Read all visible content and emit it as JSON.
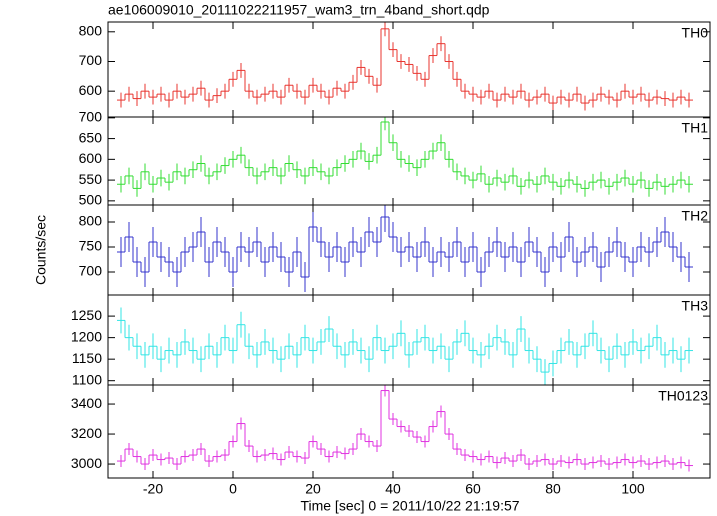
{
  "chart_data": [
    {
      "type": "line",
      "drawstyle": "steps-mid",
      "title": "ae106009010_20111022211957_wam3_trn_4band_short.qdp",
      "label": "TH0",
      "color": "#e8352f",
      "x": [
        -28,
        -26,
        -24,
        -22,
        -20,
        -18,
        -16,
        -14,
        -12,
        -10,
        -8,
        -6,
        -4,
        -2,
        0,
        2,
        4,
        6,
        8,
        10,
        12,
        14,
        16,
        18,
        20,
        22,
        24,
        26,
        28,
        30,
        32,
        34,
        36,
        38,
        40,
        42,
        44,
        46,
        48,
        50,
        52,
        54,
        56,
        58,
        60,
        62,
        64,
        66,
        68,
        70,
        72,
        74,
        76,
        78,
        80,
        82,
        84,
        86,
        88,
        90,
        92,
        94,
        96,
        98,
        100,
        102,
        104,
        106,
        108,
        110,
        112,
        114
      ],
      "values": [
        570,
        590,
        575,
        600,
        580,
        590,
        570,
        600,
        580,
        590,
        610,
        570,
        585,
        600,
        640,
        670,
        600,
        580,
        590,
        600,
        580,
        620,
        600,
        580,
        620,
        600,
        580,
        610,
        600,
        630,
        680,
        650,
        620,
        810,
        740,
        700,
        690,
        660,
        640,
        720,
        760,
        700,
        640,
        600,
        590,
        580,
        600,
        570,
        590,
        580,
        600,
        570,
        580,
        590,
        560,
        580,
        570,
        590,
        560,
        570,
        590,
        580,
        570,
        600,
        580,
        590,
        570,
        580,
        575,
        570,
        580,
        570
      ],
      "error": 25,
      "xlim": [
        -31.25,
        119.25
      ],
      "ylim": [
        513,
        833
      ],
      "yticks": [
        600,
        700,
        800
      ]
    },
    {
      "type": "line",
      "drawstyle": "steps-mid",
      "label": "TH1",
      "color": "#33dd33",
      "x": [
        -28,
        -26,
        -24,
        -22,
        -20,
        -18,
        -16,
        -14,
        -12,
        -10,
        -8,
        -6,
        -4,
        -2,
        0,
        2,
        4,
        6,
        8,
        10,
        12,
        14,
        16,
        18,
        20,
        22,
        24,
        26,
        28,
        30,
        32,
        34,
        36,
        38,
        40,
        42,
        44,
        46,
        48,
        50,
        52,
        54,
        56,
        58,
        60,
        62,
        64,
        66,
        68,
        70,
        72,
        74,
        76,
        78,
        80,
        82,
        84,
        86,
        88,
        90,
        92,
        94,
        96,
        98,
        100,
        102,
        104,
        106,
        108,
        110,
        112,
        114
      ],
      "values": [
        540,
        560,
        530,
        570,
        540,
        555,
        545,
        570,
        560,
        575,
        590,
        560,
        570,
        585,
        600,
        610,
        580,
        560,
        570,
        580,
        560,
        590,
        575,
        560,
        580,
        570,
        560,
        580,
        590,
        600,
        620,
        595,
        610,
        690,
        640,
        600,
        590,
        580,
        600,
        620,
        640,
        600,
        570,
        560,
        550,
        565,
        540,
        555,
        545,
        560,
        535,
        550,
        540,
        560,
        545,
        535,
        550,
        540,
        530,
        545,
        550,
        535,
        545,
        555,
        540,
        550,
        530,
        545,
        535,
        540,
        550,
        540
      ],
      "error": 20,
      "xlim": [
        -31.25,
        119.25
      ],
      "ylim": [
        490,
        702
      ],
      "yticks": [
        500,
        550,
        600,
        650,
        700
      ]
    },
    {
      "type": "line",
      "drawstyle": "steps-mid",
      "label": "TH2",
      "color": "#3333cc",
      "ylabel": "Counts/sec",
      "x": [
        -28,
        -26,
        -24,
        -22,
        -20,
        -18,
        -16,
        -14,
        -12,
        -10,
        -8,
        -6,
        -4,
        -2,
        0,
        2,
        4,
        6,
        8,
        10,
        12,
        14,
        16,
        18,
        20,
        22,
        24,
        26,
        28,
        30,
        32,
        34,
        36,
        38,
        40,
        42,
        44,
        46,
        48,
        50,
        52,
        54,
        56,
        58,
        60,
        62,
        64,
        66,
        68,
        70,
        72,
        74,
        76,
        78,
        80,
        82,
        84,
        86,
        88,
        90,
        92,
        94,
        96,
        98,
        100,
        102,
        104,
        106,
        108,
        110,
        112,
        114
      ],
      "values": [
        740,
        770,
        720,
        700,
        760,
        730,
        720,
        700,
        740,
        750,
        780,
        720,
        760,
        740,
        700,
        750,
        740,
        760,
        720,
        750,
        730,
        700,
        740,
        690,
        790,
        760,
        730,
        750,
        720,
        760,
        740,
        780,
        760,
        810,
        770,
        740,
        750,
        730,
        760,
        720,
        740,
        730,
        760,
        720,
        750,
        700,
        740,
        760,
        730,
        750,
        720,
        760,
        740,
        700,
        750,
        730,
        770,
        720,
        740,
        750,
        710,
        740,
        760,
        730,
        720,
        750,
        740,
        760,
        780,
        750,
        730,
        710
      ],
      "error": 30,
      "xlim": [
        -31.25,
        119.25
      ],
      "ylim": [
        654,
        834
      ],
      "yticks": [
        700,
        750,
        800
      ]
    },
    {
      "type": "line",
      "drawstyle": "steps-mid",
      "label": "TH3",
      "color": "#33e5e5",
      "x": [
        -28,
        -26,
        -24,
        -22,
        -20,
        -18,
        -16,
        -14,
        -12,
        -10,
        -8,
        -6,
        -4,
        -2,
        0,
        2,
        4,
        6,
        8,
        10,
        12,
        14,
        16,
        18,
        20,
        22,
        24,
        26,
        28,
        30,
        32,
        34,
        36,
        38,
        40,
        42,
        44,
        46,
        48,
        50,
        52,
        54,
        56,
        58,
        60,
        62,
        64,
        66,
        68,
        70,
        72,
        74,
        76,
        78,
        80,
        82,
        84,
        86,
        88,
        90,
        92,
        94,
        96,
        98,
        100,
        102,
        104,
        106,
        108,
        110,
        112,
        114
      ],
      "values": [
        1240,
        1200,
        1180,
        1160,
        1180,
        1150,
        1170,
        1160,
        1190,
        1170,
        1150,
        1180,
        1160,
        1200,
        1170,
        1230,
        1180,
        1160,
        1190,
        1170,
        1150,
        1180,
        1160,
        1200,
        1170,
        1190,
        1220,
        1180,
        1160,
        1190,
        1170,
        1150,
        1200,
        1170,
        1180,
        1210,
        1160,
        1190,
        1200,
        1170,
        1180,
        1150,
        1190,
        1210,
        1170,
        1160,
        1180,
        1200,
        1190,
        1160,
        1220,
        1170,
        1150,
        1120,
        1140,
        1170,
        1190,
        1160,
        1180,
        1210,
        1170,
        1150,
        1180,
        1160,
        1190,
        1170,
        1180,
        1200,
        1160,
        1170,
        1150,
        1170
      ],
      "error": 30,
      "xlim": [
        -31.25,
        119.25
      ],
      "ylim": [
        1090,
        1299
      ],
      "yticks": [
        1100,
        1150,
        1200,
        1250
      ]
    },
    {
      "type": "line",
      "drawstyle": "steps-mid",
      "label": "TH0123",
      "color": "#e033e0",
      "xlabel": "Time [sec] 0 = 2011/10/22 21:19:57",
      "x": [
        -28,
        -26,
        -24,
        -22,
        -20,
        -18,
        -16,
        -14,
        -12,
        -10,
        -8,
        -6,
        -4,
        -2,
        0,
        2,
        4,
        6,
        8,
        10,
        12,
        14,
        16,
        18,
        20,
        22,
        24,
        26,
        28,
        30,
        32,
        34,
        36,
        38,
        40,
        42,
        44,
        46,
        48,
        50,
        52,
        54,
        56,
        58,
        60,
        62,
        64,
        66,
        68,
        70,
        72,
        74,
        76,
        78,
        80,
        82,
        84,
        86,
        88,
        90,
        92,
        94,
        96,
        98,
        100,
        102,
        104,
        106,
        108,
        110,
        112,
        114
      ],
      "values": [
        3020,
        3100,
        3050,
        3000,
        3060,
        3030,
        3040,
        3000,
        3050,
        3060,
        3100,
        3020,
        3050,
        3060,
        3150,
        3270,
        3120,
        3050,
        3060,
        3070,
        3030,
        3080,
        3050,
        3040,
        3150,
        3100,
        3050,
        3080,
        3070,
        3100,
        3200,
        3150,
        3120,
        3490,
        3300,
        3250,
        3220,
        3180,
        3150,
        3250,
        3350,
        3200,
        3100,
        3060,
        3050,
        3030,
        3050,
        3010,
        3040,
        3020,
        3060,
        3000,
        3020,
        3030,
        3000,
        3020,
        3010,
        3030,
        3000,
        3010,
        3020,
        3000,
        3010,
        3030,
        3010,
        3020,
        3000,
        3010,
        3020,
        3000,
        3010,
        2990
      ],
      "error": 40,
      "xlim": [
        -31.25,
        119.25
      ],
      "ylim": [
        2907,
        3527
      ],
      "yticks": [
        3000,
        3200,
        3400
      ],
      "xticks": [
        -20,
        0,
        20,
        40,
        60,
        80,
        100
      ]
    }
  ]
}
